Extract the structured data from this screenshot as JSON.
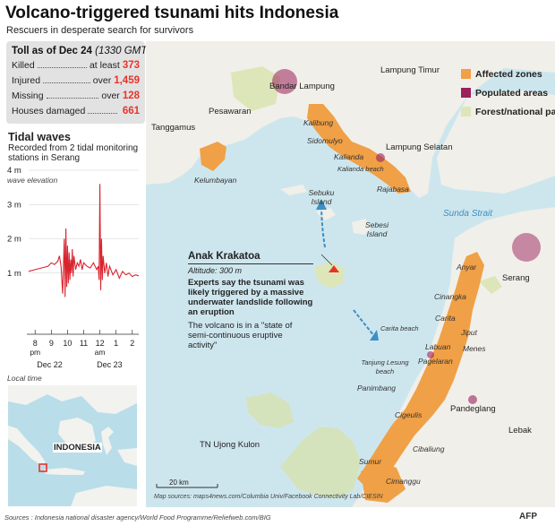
{
  "title": "Volcano-triggered tsunami hits Indonesia",
  "subtitle": "Rescuers in desperate search for survivors",
  "toll": {
    "heading": "Toll as of Dec 24",
    "note": "(1330 GMT):",
    "rows": [
      {
        "label": "Killed",
        "prefix": "at least",
        "value": "373"
      },
      {
        "label": "Injured",
        "prefix": "over",
        "value": "1,459"
      },
      {
        "label": "Missing",
        "prefix": "over",
        "value": "128"
      },
      {
        "label": "Houses damaged",
        "prefix": "",
        "value": "661"
      }
    ]
  },
  "tidal": {
    "title": "Tidal waves",
    "subtitle": "Recorded from 2 tidal monitoring stations in Serang"
  },
  "chart_data": {
    "type": "line",
    "title": "Tidal waves",
    "ylabel": "wave elevation",
    "yticks": [
      "4 m",
      "3 m",
      "2 m",
      "1 m"
    ],
    "ylim": [
      0,
      4
    ],
    "xticks": [
      "8",
      "9",
      "10",
      "11",
      "12",
      "1",
      "2"
    ],
    "xtick_sub": [
      "pm",
      "",
      "",
      "",
      "am",
      "",
      ""
    ],
    "xgroups": [
      "Dec 22",
      "Dec 23"
    ],
    "xlabel": "Local time",
    "xlim": [
      7.6,
      14.4
    ],
    "series_color": "#d9232e",
    "series": [
      {
        "x": [
          7.6,
          8.0,
          8.4,
          8.8,
          9.0,
          9.2,
          9.4,
          9.5,
          9.6,
          9.7,
          9.8,
          9.85,
          9.9,
          9.95,
          10.0,
          10.05,
          10.1,
          10.15,
          10.2,
          10.25,
          10.3,
          10.35,
          10.4,
          10.5,
          10.6,
          10.7,
          10.8,
          10.9,
          11.0,
          11.2,
          11.4,
          11.6,
          11.8,
          11.9,
          11.95,
          12.0,
          12.05,
          12.1,
          12.15,
          12.2,
          12.3,
          12.4,
          12.5,
          12.6,
          12.8,
          13.0,
          13.2,
          13.4,
          13.6,
          13.8,
          14.0,
          14.2,
          14.4
        ],
        "y": [
          1.05,
          1.1,
          1.15,
          1.2,
          1.3,
          1.25,
          1.35,
          1.5,
          1.2,
          0.4,
          2.0,
          0.3,
          2.3,
          0.6,
          1.8,
          0.7,
          1.6,
          0.8,
          1.4,
          1.0,
          1.7,
          0.9,
          1.5,
          1.1,
          1.3,
          1.2,
          1.4,
          1.1,
          1.3,
          1.2,
          1.15,
          1.3,
          1.1,
          1.2,
          0.8,
          3.6,
          0.5,
          2.0,
          0.8,
          1.5,
          1.0,
          1.3,
          0.9,
          1.2,
          0.95,
          1.1,
          0.85,
          1.05,
          0.95,
          1.0,
          0.9,
          0.95,
          0.92
        ]
      }
    ]
  },
  "inset": {
    "country_label": "INDONESIA",
    "colors": {
      "sea": "#b9dde9",
      "land": "#f2f2ef",
      "highlight": "#e8332a"
    }
  },
  "legend": [
    {
      "label": "Affected zones",
      "color": "#f0a046"
    },
    {
      "label": "Populated areas",
      "color": "#9b1f5b"
    },
    {
      "label": "Forest/national park",
      "color": "#dde6b8"
    }
  ],
  "map_labels": {
    "places": [
      "Bandar Lampung",
      "Lampung Timur",
      "Pesawaran",
      "Tanggamus",
      "Kelumbayan",
      "Lampung Selatan",
      "Serang",
      "Pandeglang",
      "Lebak",
      "TN Ujong Kulon"
    ],
    "towns": [
      "Kalibung",
      "Sidomulyo",
      "Kalianda",
      "Kalianda beach",
      "Rajabasa",
      "Sebuku Island",
      "Sebesi Island",
      "Anyar",
      "Cinangka",
      "Carita",
      "Carita beach",
      "Jiput",
      "Labuan",
      "Menes",
      "Pagelaran",
      "Tanjung Lesung beach",
      "Panimbang",
      "Cigeulis",
      "Cibaliung",
      "Sumur",
      "Cimanggu"
    ],
    "sea": "Sunda Strait"
  },
  "annotation": {
    "title": "Anak Krakatoa",
    "altitude": "Altitude: 300 m",
    "text1": "Experts say the tsunami was likely triggered by a massive underwater landslide following an eruption",
    "text2": "The volcano is in a \"state of semi-continuous eruptive activity\""
  },
  "scale": "20 km",
  "map_source": "Map sources: maps4news.com/Columbia Univ/Facebook Connectivity Lab/CIESIN",
  "sources": "Sources : Indonesia national disaster agency/World Food Programme/Reliefweb.com/BIG",
  "agency": "AFP"
}
